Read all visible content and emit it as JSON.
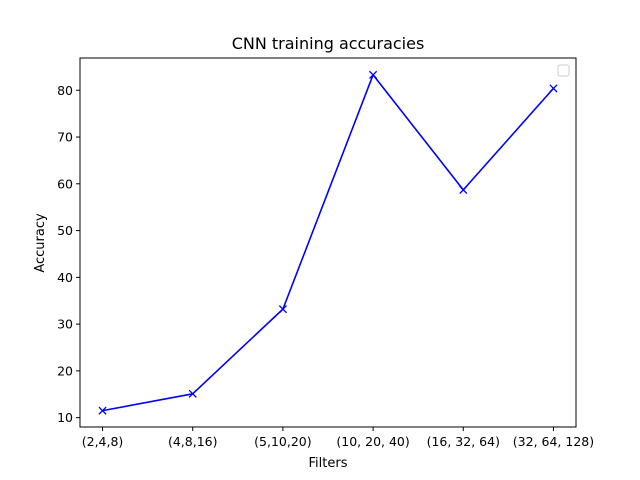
{
  "chart_data": {
    "type": "line",
    "title": "CNN training accuracies",
    "xlabel": "Filters",
    "ylabel": "Accuracy",
    "categories": [
      "(2,4,8)",
      "(4,8,16)",
      "(5,10,20)",
      "(10, 20, 40)",
      "(16, 32, 64)",
      "(32, 64, 128)"
    ],
    "series": [
      {
        "values": [
          11.5,
          15.1,
          33.2,
          83.3,
          58.7,
          80.4
        ],
        "color": "#0000ff",
        "marker": "x"
      }
    ],
    "ylim": [
      8.0,
      86.9
    ],
    "yticks": [
      10,
      20,
      30,
      40,
      50,
      60,
      70,
      80
    ],
    "grid": false,
    "legend": {
      "position": "top-right",
      "entries": []
    }
  }
}
